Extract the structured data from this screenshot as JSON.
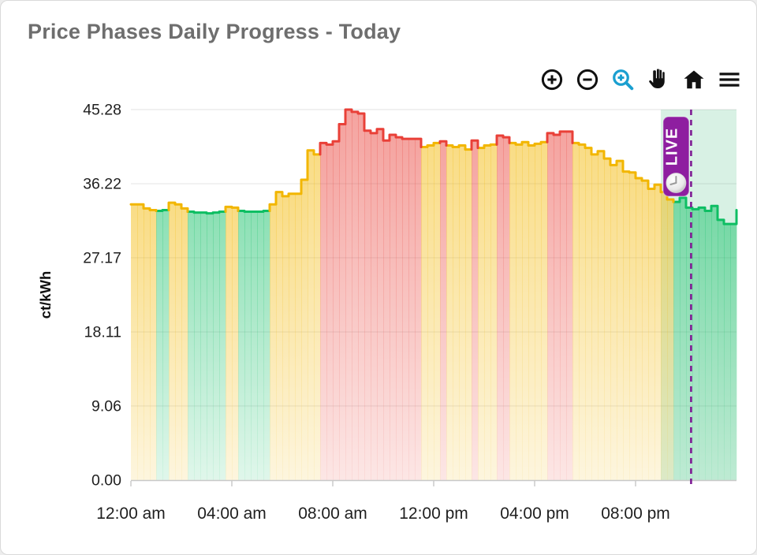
{
  "card": {
    "title": "Price Phases Daily Progress - Today"
  },
  "toolbar": {
    "icons": [
      "zoom-in-icon",
      "zoom-out-icon",
      "box-zoom-icon",
      "pan-hand-icon",
      "home-icon",
      "menu-icon"
    ],
    "box_zoom_color": "#1A9FD0",
    "icon_color": "#111111"
  },
  "live_marker": {
    "label": "LIVE",
    "time_hours": 22.2,
    "badge_color": "#8E1EA0",
    "line_color": "#7E1B94"
  },
  "highlight_region": {
    "start_hours": 21,
    "end_hours": 24,
    "color": "#28B469",
    "opacity": 0.18
  },
  "chart_data": {
    "type": "area",
    "subtype": "step",
    "title": "Price Phases Daily Progress - Today",
    "xlabel": "",
    "ylabel": "ct/kWh",
    "ylim": [
      0,
      45.28
    ],
    "yticks": [
      {
        "value": 45.28,
        "label": "45.28"
      },
      {
        "value": 36.22,
        "label": "36.22"
      },
      {
        "value": 27.17,
        "label": "27.17"
      },
      {
        "value": 18.11,
        "label": "18.11"
      },
      {
        "value": 9.06,
        "label": "9.06"
      },
      {
        "value": 0.0,
        "label": "0.00"
      }
    ],
    "xticks": [
      {
        "hour": 0,
        "label": "12:00 am"
      },
      {
        "hour": 4,
        "label": "04:00 am"
      },
      {
        "hour": 8,
        "label": "08:00 am"
      },
      {
        "hour": 12,
        "label": "12:00 pm"
      },
      {
        "hour": 16,
        "label": "04:00 pm"
      },
      {
        "hour": 20,
        "label": "08:00 pm"
      }
    ],
    "grid": true,
    "legend": "none",
    "step_minutes": 15,
    "phase_colors": {
      "g": "#0EBE63",
      "y": "#F2B600",
      "r": "#E94038"
    },
    "phase_names": {
      "g": "low-price-green",
      "y": "medium-price-yellow",
      "r": "high-price-red"
    },
    "series": [
      [
        33.7,
        "y"
      ],
      [
        33.7,
        "y"
      ],
      [
        33.2,
        "y"
      ],
      [
        33.0,
        "y"
      ],
      [
        32.9,
        "g"
      ],
      [
        33.0,
        "g"
      ],
      [
        33.9,
        "y"
      ],
      [
        33.7,
        "y"
      ],
      [
        33.2,
        "y"
      ],
      [
        32.8,
        "g"
      ],
      [
        32.7,
        "g"
      ],
      [
        32.7,
        "g"
      ],
      [
        32.6,
        "g"
      ],
      [
        32.7,
        "g"
      ],
      [
        32.8,
        "g"
      ],
      [
        33.4,
        "y"
      ],
      [
        33.3,
        "y"
      ],
      [
        32.9,
        "g"
      ],
      [
        32.8,
        "g"
      ],
      [
        32.8,
        "g"
      ],
      [
        32.8,
        "g"
      ],
      [
        32.9,
        "g"
      ],
      [
        33.7,
        "y"
      ],
      [
        35.2,
        "y"
      ],
      [
        34.7,
        "y"
      ],
      [
        35.0,
        "y"
      ],
      [
        35.0,
        "y"
      ],
      [
        36.7,
        "y"
      ],
      [
        40.3,
        "y"
      ],
      [
        39.8,
        "y"
      ],
      [
        41.2,
        "r"
      ],
      [
        41.0,
        "r"
      ],
      [
        41.4,
        "r"
      ],
      [
        43.5,
        "r"
      ],
      [
        45.28,
        "r"
      ],
      [
        45.0,
        "r"
      ],
      [
        44.8,
        "r"
      ],
      [
        42.7,
        "r"
      ],
      [
        42.4,
        "r"
      ],
      [
        42.9,
        "r"
      ],
      [
        41.5,
        "r"
      ],
      [
        42.2,
        "r"
      ],
      [
        41.9,
        "r"
      ],
      [
        41.7,
        "r"
      ],
      [
        41.7,
        "r"
      ],
      [
        41.7,
        "r"
      ],
      [
        40.7,
        "y"
      ],
      [
        40.9,
        "y"
      ],
      [
        41.2,
        "y"
      ],
      [
        41.4,
        "r"
      ],
      [
        40.9,
        "y"
      ],
      [
        40.7,
        "y"
      ],
      [
        40.9,
        "y"
      ],
      [
        40.4,
        "y"
      ],
      [
        41.5,
        "r"
      ],
      [
        40.6,
        "y"
      ],
      [
        40.9,
        "y"
      ],
      [
        41.0,
        "y"
      ],
      [
        42.1,
        "r"
      ],
      [
        41.9,
        "r"
      ],
      [
        41.2,
        "y"
      ],
      [
        41.0,
        "y"
      ],
      [
        41.3,
        "y"
      ],
      [
        40.9,
        "y"
      ],
      [
        41.1,
        "y"
      ],
      [
        41.3,
        "y"
      ],
      [
        42.4,
        "r"
      ],
      [
        42.2,
        "r"
      ],
      [
        42.6,
        "r"
      ],
      [
        42.6,
        "r"
      ],
      [
        41.2,
        "y"
      ],
      [
        41.0,
        "y"
      ],
      [
        40.6,
        "y"
      ],
      [
        39.8,
        "y"
      ],
      [
        40.2,
        "y"
      ],
      [
        39.3,
        "y"
      ],
      [
        38.5,
        "y"
      ],
      [
        39.0,
        "y"
      ],
      [
        37.7,
        "y"
      ],
      [
        37.6,
        "y"
      ],
      [
        36.9,
        "y"
      ],
      [
        36.6,
        "y"
      ],
      [
        35.6,
        "y"
      ],
      [
        36.1,
        "y"
      ],
      [
        35.2,
        "y"
      ],
      [
        34.3,
        "y"
      ],
      [
        34.0,
        "g"
      ],
      [
        34.5,
        "g"
      ],
      [
        33.3,
        "g"
      ],
      [
        33.1,
        "g"
      ],
      [
        33.3,
        "g"
      ],
      [
        32.9,
        "g"
      ],
      [
        33.5,
        "g"
      ],
      [
        31.8,
        "g"
      ],
      [
        31.3,
        "g"
      ],
      [
        31.3,
        "g"
      ]
    ],
    "end_value": 33.0
  }
}
